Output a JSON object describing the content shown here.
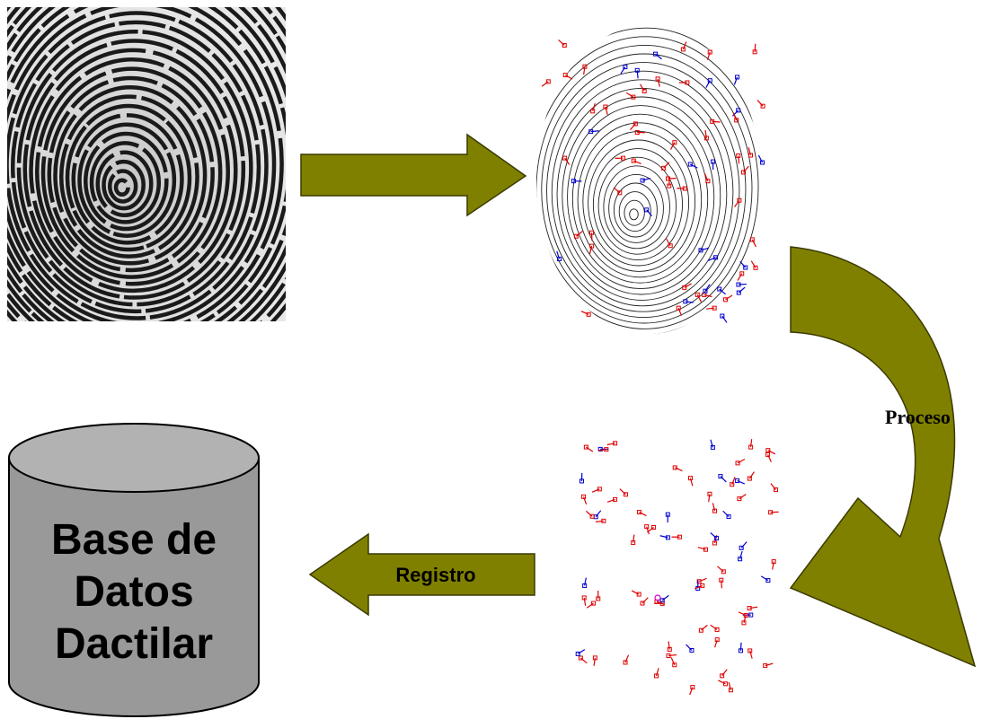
{
  "labels": {
    "process": "Proceso",
    "register": "Registro",
    "database": [
      "Base de",
      "Datos",
      "Dactilar"
    ]
  }
}
